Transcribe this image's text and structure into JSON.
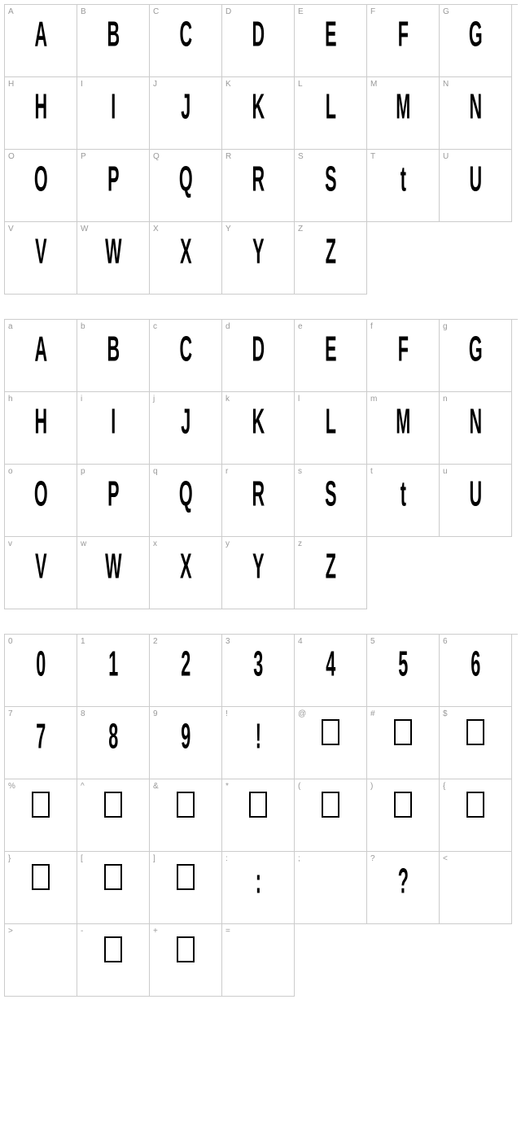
{
  "sections": [
    {
      "cells": [
        {
          "label": "A",
          "glyph": "A",
          "style": "condensed"
        },
        {
          "label": "B",
          "glyph": "B",
          "style": "condensed"
        },
        {
          "label": "C",
          "glyph": "C",
          "style": "condensed"
        },
        {
          "label": "D",
          "glyph": "D",
          "style": "condensed"
        },
        {
          "label": "E",
          "glyph": "E",
          "style": "condensed"
        },
        {
          "label": "F",
          "glyph": "F",
          "style": "condensed"
        },
        {
          "label": "G",
          "glyph": "G",
          "style": "condensed"
        },
        {
          "label": "H",
          "glyph": "H",
          "style": "condensed"
        },
        {
          "label": "I",
          "glyph": "I",
          "style": "condensed"
        },
        {
          "label": "J",
          "glyph": "J",
          "style": "condensed"
        },
        {
          "label": "K",
          "glyph": "K",
          "style": "condensed"
        },
        {
          "label": "L",
          "glyph": "L",
          "style": "condensed"
        },
        {
          "label": "M",
          "glyph": "M",
          "style": "condensed"
        },
        {
          "label": "N",
          "glyph": "N",
          "style": "condensed"
        },
        {
          "label": "O",
          "glyph": "O",
          "style": "condensed"
        },
        {
          "label": "P",
          "glyph": "P",
          "style": "condensed"
        },
        {
          "label": "Q",
          "glyph": "Q",
          "style": "condensed"
        },
        {
          "label": "R",
          "glyph": "R",
          "style": "condensed"
        },
        {
          "label": "S",
          "glyph": "S",
          "style": "condensed"
        },
        {
          "label": "T",
          "glyph": "t",
          "style": "condensed"
        },
        {
          "label": "U",
          "glyph": "U",
          "style": "condensed"
        },
        {
          "label": "V",
          "glyph": "V",
          "style": "condensed"
        },
        {
          "label": "W",
          "glyph": "W",
          "style": "condensed"
        },
        {
          "label": "X",
          "glyph": "X",
          "style": "condensed"
        },
        {
          "label": "Y",
          "glyph": "Y",
          "style": "condensed"
        },
        {
          "label": "Z",
          "glyph": "Z",
          "style": "condensed"
        }
      ]
    },
    {
      "cells": [
        {
          "label": "a",
          "glyph": "A",
          "style": "condensed"
        },
        {
          "label": "b",
          "glyph": "B",
          "style": "condensed"
        },
        {
          "label": "c",
          "glyph": "C",
          "style": "condensed"
        },
        {
          "label": "d",
          "glyph": "D",
          "style": "condensed"
        },
        {
          "label": "e",
          "glyph": "E",
          "style": "condensed"
        },
        {
          "label": "f",
          "glyph": "F",
          "style": "condensed"
        },
        {
          "label": "g",
          "glyph": "G",
          "style": "condensed"
        },
        {
          "label": "h",
          "glyph": "H",
          "style": "condensed"
        },
        {
          "label": "i",
          "glyph": "I",
          "style": "condensed"
        },
        {
          "label": "j",
          "glyph": "J",
          "style": "condensed"
        },
        {
          "label": "k",
          "glyph": "K",
          "style": "condensed"
        },
        {
          "label": "l",
          "glyph": "L",
          "style": "condensed"
        },
        {
          "label": "m",
          "glyph": "M",
          "style": "condensed"
        },
        {
          "label": "n",
          "glyph": "N",
          "style": "condensed"
        },
        {
          "label": "o",
          "glyph": "O",
          "style": "condensed"
        },
        {
          "label": "p",
          "glyph": "P",
          "style": "condensed"
        },
        {
          "label": "q",
          "glyph": "Q",
          "style": "condensed"
        },
        {
          "label": "r",
          "glyph": "R",
          "style": "condensed"
        },
        {
          "label": "s",
          "glyph": "S",
          "style": "condensed"
        },
        {
          "label": "t",
          "glyph": "t",
          "style": "condensed"
        },
        {
          "label": "u",
          "glyph": "U",
          "style": "condensed"
        },
        {
          "label": "v",
          "glyph": "V",
          "style": "condensed"
        },
        {
          "label": "w",
          "glyph": "W",
          "style": "condensed"
        },
        {
          "label": "x",
          "glyph": "X",
          "style": "condensed"
        },
        {
          "label": "y",
          "glyph": "Y",
          "style": "condensed"
        },
        {
          "label": "z",
          "glyph": "Z",
          "style": "condensed"
        }
      ]
    },
    {
      "cells": [
        {
          "label": "0",
          "glyph": "0",
          "style": "condensed"
        },
        {
          "label": "1",
          "glyph": "1",
          "style": "condensed"
        },
        {
          "label": "2",
          "glyph": "2",
          "style": "condensed"
        },
        {
          "label": "3",
          "glyph": "3",
          "style": "condensed"
        },
        {
          "label": "4",
          "glyph": "4",
          "style": "condensed"
        },
        {
          "label": "5",
          "glyph": "5",
          "style": "condensed"
        },
        {
          "label": "6",
          "glyph": "6",
          "style": "condensed"
        },
        {
          "label": "7",
          "glyph": "7",
          "style": "condensed"
        },
        {
          "label": "8",
          "glyph": "8",
          "style": "condensed"
        },
        {
          "label": "9",
          "glyph": "9",
          "style": "condensed"
        },
        {
          "label": "!",
          "glyph": "!",
          "style": "condensed"
        },
        {
          "label": "@",
          "glyph": "",
          "style": "box"
        },
        {
          "label": "#",
          "glyph": "",
          "style": "box"
        },
        {
          "label": "$",
          "glyph": "",
          "style": "box"
        },
        {
          "label": "%",
          "glyph": "",
          "style": "box"
        },
        {
          "label": "^",
          "glyph": "",
          "style": "box"
        },
        {
          "label": "&",
          "glyph": "",
          "style": "box"
        },
        {
          "label": "*",
          "glyph": "",
          "style": "box"
        },
        {
          "label": "(",
          "glyph": "",
          "style": "box"
        },
        {
          "label": ")",
          "glyph": "",
          "style": "box"
        },
        {
          "label": "{",
          "glyph": "",
          "style": "box"
        },
        {
          "label": "}",
          "glyph": "",
          "style": "box"
        },
        {
          "label": "[",
          "glyph": "",
          "style": "box"
        },
        {
          "label": "]",
          "glyph": "",
          "style": "box"
        },
        {
          "label": ":",
          "glyph": ":",
          "style": "condensed"
        },
        {
          "label": ";",
          "glyph": "",
          "style": "empty"
        },
        {
          "label": "?",
          "glyph": "?",
          "style": "condensed"
        },
        {
          "label": "<",
          "glyph": "",
          "style": "empty"
        },
        {
          "label": ">",
          "glyph": "",
          "style": "empty"
        },
        {
          "label": "-",
          "glyph": "",
          "style": "box"
        },
        {
          "label": "+",
          "glyph": "",
          "style": "box"
        },
        {
          "label": "=",
          "glyph": "",
          "style": "empty"
        }
      ]
    }
  ],
  "colors": {
    "border": "#cccccc",
    "label": "#999999",
    "glyph": "#000000",
    "background": "#ffffff"
  },
  "cell_size": 89,
  "glyph_fontsize": 36,
  "label_fontsize": 10
}
